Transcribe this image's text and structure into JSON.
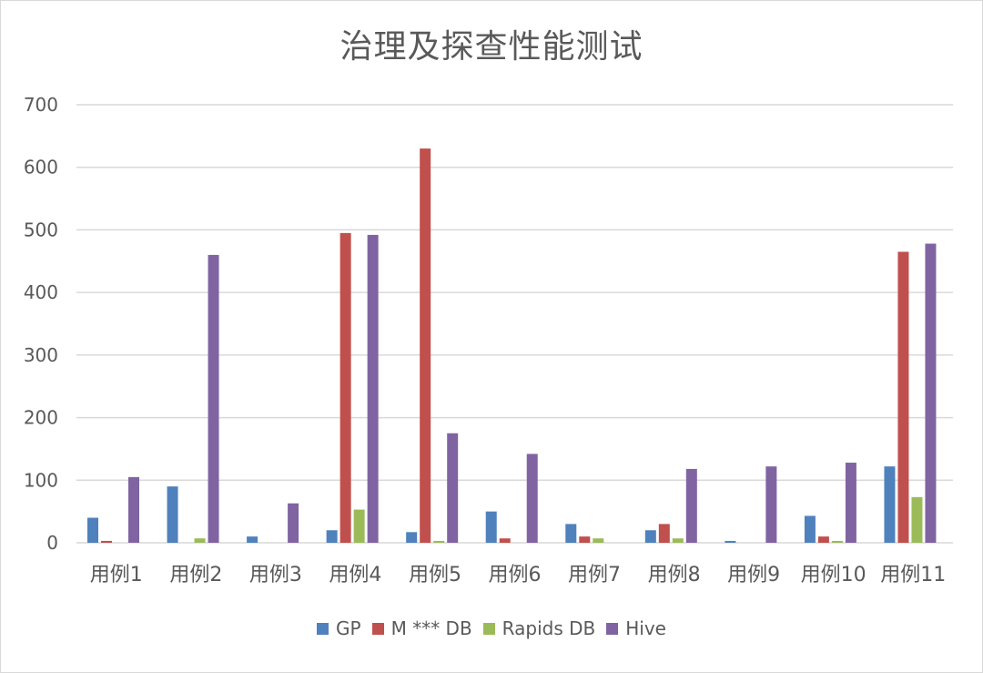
{
  "chart_data": {
    "type": "bar",
    "title": "治理及探查性能测试",
    "xlabel": "",
    "ylabel": "",
    "ylim": [
      0,
      700
    ],
    "yticks": [
      "0",
      "100",
      "200",
      "300",
      "400",
      "500",
      "600",
      "700"
    ],
    "categories": [
      "用例1",
      "用例2",
      "用例3",
      "用例4",
      "用例5",
      "用例6",
      "用例7",
      "用例8",
      "用例9",
      "用例10",
      "用例11"
    ],
    "series": [
      {
        "name": "GP",
        "color": "#4f81bd",
        "values": [
          40,
          90,
          10,
          20,
          17,
          50,
          30,
          20,
          3,
          43,
          122
        ]
      },
      {
        "name": "M *** DB",
        "color": "#c0504d",
        "values": [
          3,
          0,
          0,
          495,
          630,
          7,
          10,
          30,
          0,
          10,
          465
        ]
      },
      {
        "name": "Rapids DB",
        "color": "#9bbb59",
        "values": [
          0,
          7,
          0,
          53,
          3,
          0,
          7,
          7,
          0,
          3,
          73
        ]
      },
      {
        "name": "Hive",
        "color": "#8064a2",
        "values": [
          105,
          460,
          63,
          492,
          175,
          142,
          0,
          118,
          122,
          128,
          478
        ]
      }
    ],
    "grid": true,
    "legend": "bottom"
  }
}
